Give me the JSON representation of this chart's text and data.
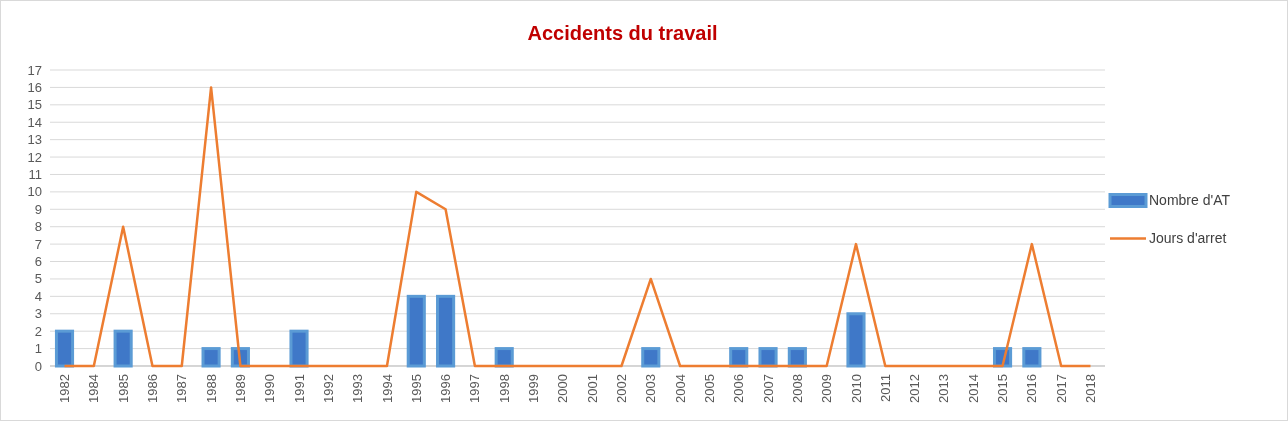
{
  "chart_data": {
    "type": "bar",
    "title": "Accidents du travail",
    "categories": [
      "1982",
      "1984",
      "1985",
      "1986",
      "1987",
      "1988",
      "1989",
      "1990",
      "1991",
      "1992",
      "1993",
      "1994",
      "1995",
      "1996",
      "1997",
      "1998",
      "1999",
      "2000",
      "2001",
      "2002",
      "2003",
      "2004",
      "2005",
      "2006",
      "2007",
      "2008",
      "2009",
      "2010",
      "2011",
      "2012",
      "2013",
      "2014",
      "2015",
      "2016",
      "2017",
      "2018"
    ],
    "series": [
      {
        "name": "Nombre d'AT",
        "color": "#5b9bd5",
        "values": [
          2,
          0,
          2,
          0,
          0,
          1,
          1,
          0,
          2,
          0,
          0,
          0,
          4,
          4,
          0,
          1,
          0,
          0,
          0,
          0,
          1,
          0,
          0,
          1,
          1,
          1,
          0,
          3,
          0,
          0,
          0,
          0,
          1,
          1,
          0,
          0
        ]
      },
      {
        "name": "Jours d'arret",
        "type": "line",
        "color": "#ed7d31",
        "values": [
          0,
          0,
          8,
          0,
          0,
          16,
          0,
          0,
          0,
          0,
          0,
          0,
          10,
          9,
          0,
          0,
          0,
          0,
          0,
          0,
          5,
          0,
          0,
          0,
          0,
          0,
          0,
          7,
          0,
          0,
          0,
          0,
          0,
          7,
          0,
          0
        ]
      }
    ],
    "ylim": [
      0,
      17
    ],
    "yticks": [
      0,
      1,
      2,
      3,
      4,
      5,
      6,
      7,
      8,
      9,
      10,
      11,
      12,
      13,
      14,
      15,
      16,
      17
    ],
    "grid": "y",
    "legend": "right"
  }
}
